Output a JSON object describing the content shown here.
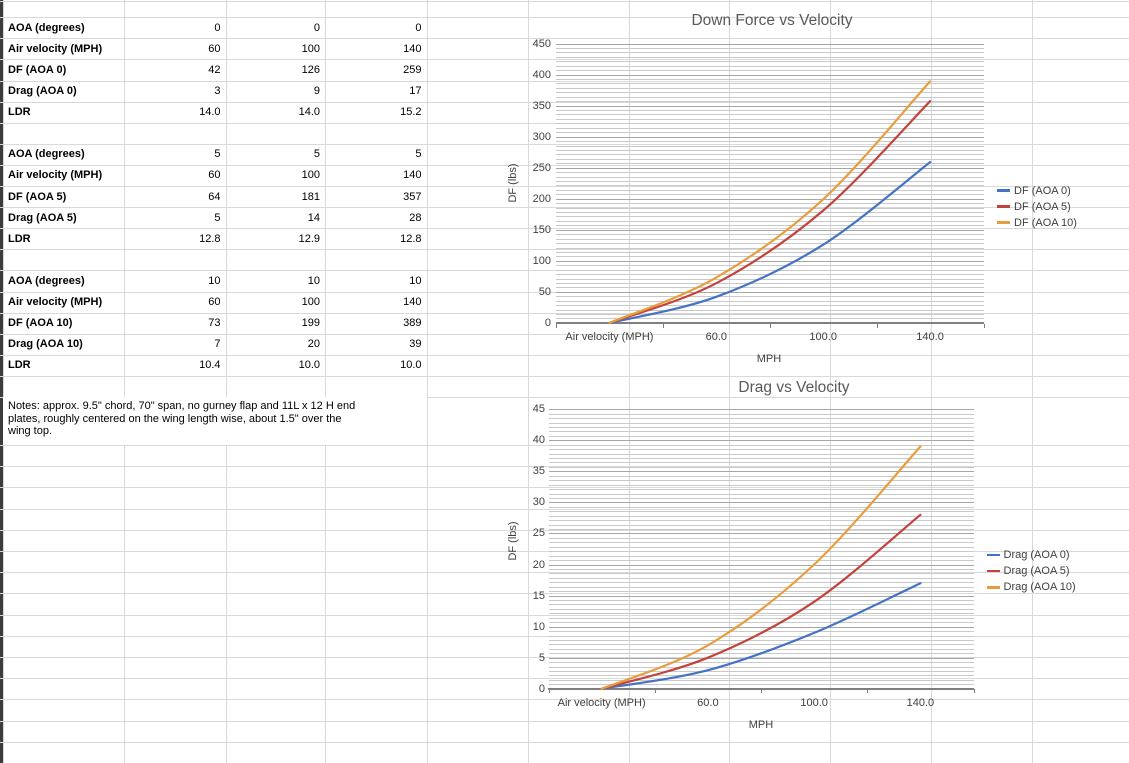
{
  "sheet": {
    "notes": "Notes: approx. 9.5\" chord, 70\" span, no gurney flap and 11L x 12 H end plates, roughly centered on the wing length wise, about 1.5\" over the wing top."
  },
  "table": {
    "rows": [
      {
        "label": "AOA (degrees)",
        "values": [
          "0",
          "0",
          "0"
        ]
      },
      {
        "label": "Air velocity (MPH)",
        "values": [
          "60",
          "100",
          "140"
        ]
      },
      {
        "label": "DF (AOA 0)",
        "values": [
          "42",
          "126",
          "259"
        ]
      },
      {
        "label": "Drag (AOA 0)",
        "values": [
          "3",
          "9",
          "17"
        ]
      },
      {
        "label": "LDR",
        "values": [
          "14.0",
          "14.0",
          "15.2"
        ]
      },
      {
        "label": "",
        "values": []
      },
      {
        "label": "AOA (degrees)",
        "values": [
          "5",
          "5",
          "5"
        ]
      },
      {
        "label": "Air velocity (MPH)",
        "values": [
          "60",
          "100",
          "140"
        ]
      },
      {
        "label": "DF (AOA 5)",
        "values": [
          "64",
          "181",
          "357"
        ]
      },
      {
        "label": "Drag (AOA 5)",
        "values": [
          "5",
          "14",
          "28"
        ]
      },
      {
        "label": "LDR",
        "values": [
          "12.8",
          "12.9",
          "12.8"
        ]
      },
      {
        "label": "",
        "values": []
      },
      {
        "label": "AOA (degrees)",
        "values": [
          "10",
          "10",
          "10"
        ]
      },
      {
        "label": "Air velocity (MPH)",
        "values": [
          "60",
          "100",
          "140"
        ]
      },
      {
        "label": "DF (AOA 10)",
        "values": [
          "73",
          "199",
          "389"
        ]
      },
      {
        "label": "Drag (AOA 10)",
        "values": [
          "7",
          "20",
          "39"
        ]
      },
      {
        "label": "LDR",
        "values": [
          "10.4",
          "10.0",
          "10.0"
        ]
      }
    ]
  },
  "chart_data": [
    {
      "type": "line",
      "title": "Down Force vs Velocity",
      "categories": [
        "Air velocity (MPH)",
        "60.0",
        "100.0",
        "140.0"
      ],
      "series": [
        {
          "name": "DF (AOA 0)",
          "values": [
            0,
            42,
            126,
            259
          ],
          "color": "#4472C4"
        },
        {
          "name": "DF (AOA 5)",
          "values": [
            0,
            64,
            181,
            357
          ],
          "color": "#C3433C"
        },
        {
          "name": "DF (AOA 10)",
          "values": [
            0,
            73,
            199,
            389
          ],
          "color": "#E89D3C"
        }
      ],
      "xlabel": "MPH",
      "ylabel": "DF (lbs)",
      "ylim": [
        0,
        450
      ],
      "ytick_step": 50,
      "legend_position": "right",
      "grid": "horizontal-major-and-minor",
      "smooth": true
    },
    {
      "type": "line",
      "title": "Drag vs Velocity",
      "categories": [
        "Air velocity (MPH)",
        "60.0",
        "100.0",
        "140.0"
      ],
      "series": [
        {
          "name": "Drag (AOA 0)",
          "values": [
            0,
            3,
            9,
            17
          ],
          "color": "#4472C4"
        },
        {
          "name": "Drag (AOA 5)",
          "values": [
            0,
            5,
            14,
            28
          ],
          "color": "#C3433C"
        },
        {
          "name": "Drag (AOA 10)",
          "values": [
            0,
            7,
            20,
            39
          ],
          "color": "#E89D3C"
        }
      ],
      "xlabel": "MPH",
      "ylabel": "DF (lbs)",
      "ylim": [
        0,
        45
      ],
      "ytick_step": 5,
      "legend_position": "right",
      "grid": "horizontal-major-and-minor",
      "smooth": true
    }
  ]
}
